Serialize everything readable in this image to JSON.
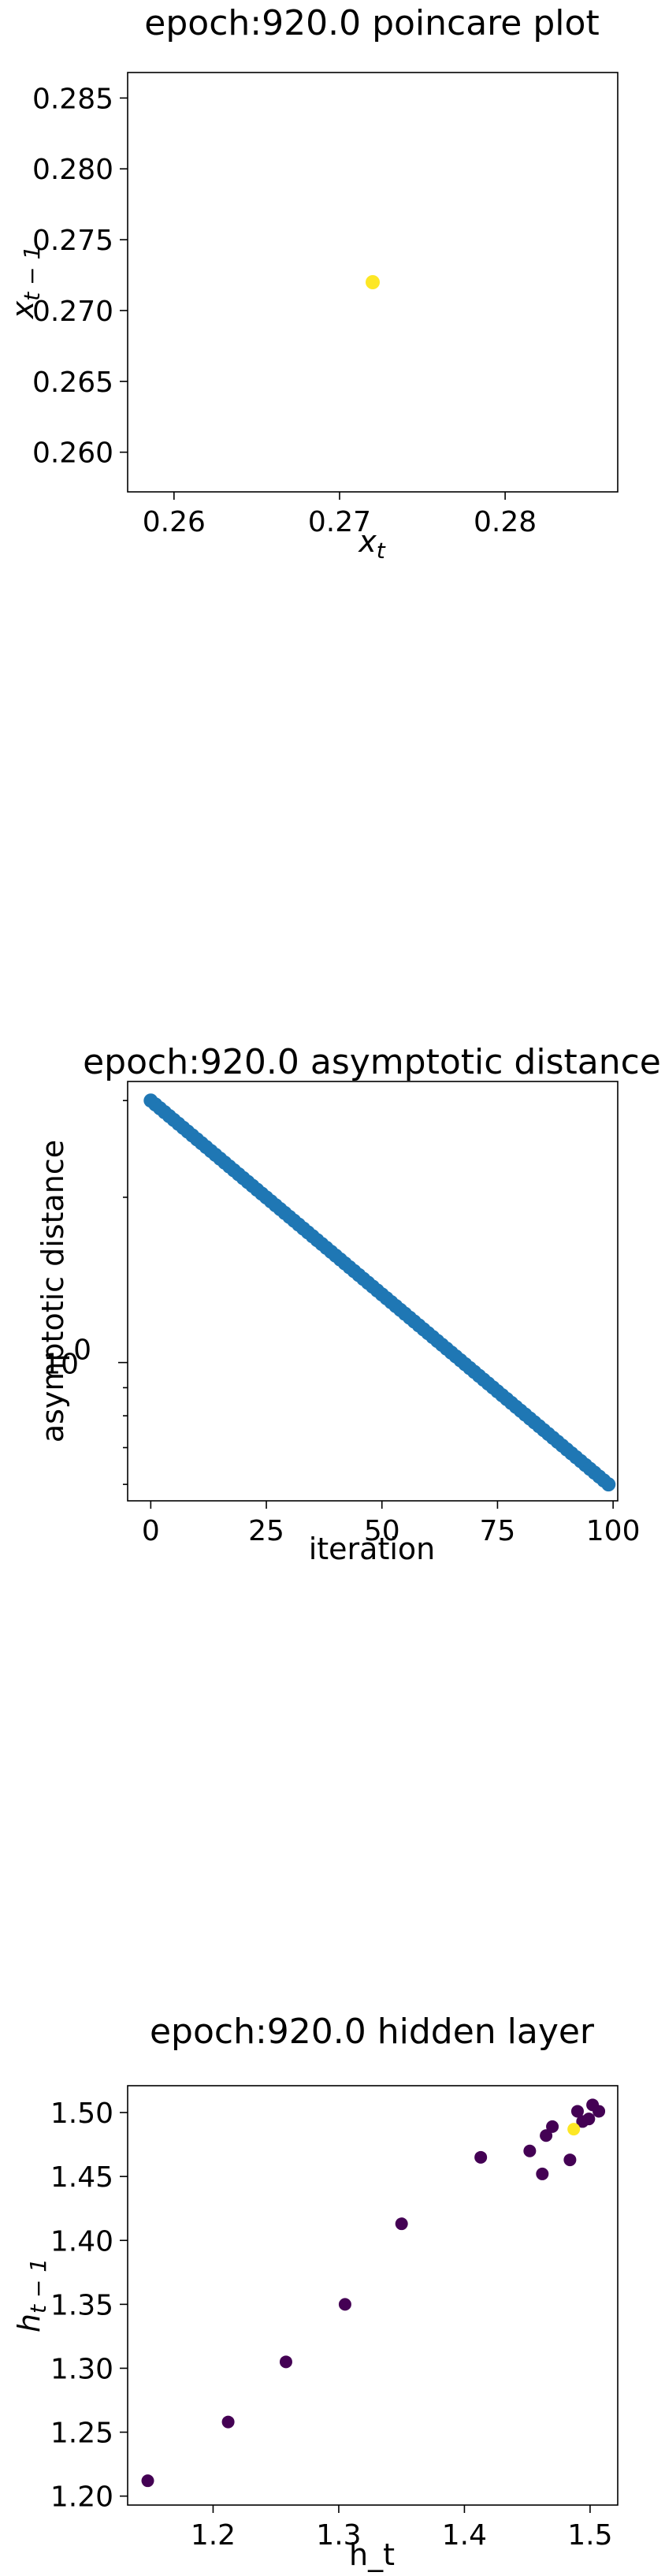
{
  "chart_data": [
    {
      "type": "scatter",
      "title": "epoch:920.0 poincare plot",
      "xlabel": "x",
      "xlabel_sub": "t",
      "ylabel": "x",
      "ylabel_sub": "t − 1",
      "xlim": [
        0.2572,
        0.2868
      ],
      "ylim": [
        0.2572,
        0.2868
      ],
      "xticks": [
        0.26,
        0.27,
        0.28
      ],
      "yticks": [
        0.26,
        0.265,
        0.27,
        0.275,
        0.28,
        0.285
      ],
      "xtick_labels": [
        "0.26",
        "0.27",
        "0.28"
      ],
      "ytick_labels": [
        "0.260",
        "0.265",
        "0.270",
        "0.275",
        "0.280",
        "0.285"
      ],
      "grid": false,
      "points": [
        {
          "x": 0.272,
          "y": 0.272,
          "color": "#fde725"
        }
      ]
    },
    {
      "type": "scatter",
      "title": "epoch:920.0 asymptotic distance",
      "xlabel": "iteration",
      "ylabel": "asymptotic distance",
      "yscale": "log",
      "xlim": [
        -5,
        101
      ],
      "ylim": [
        0.56,
        3.25
      ],
      "xticks": [
        0,
        25,
        50,
        75,
        100
      ],
      "xtick_labels": [
        "0",
        "25",
        "50",
        "75",
        "100"
      ],
      "ytick_major": [
        1
      ],
      "ytick_major_labels": [
        "10",
        "0"
      ],
      "ytick_minor": [
        0.6,
        0.7,
        0.8,
        0.9,
        2,
        3
      ],
      "grid": false,
      "color": "#1f77b4",
      "n_points": 100,
      "y_start": 3.0,
      "y_end": 0.6
    },
    {
      "type": "scatter",
      "title": "epoch:920.0 hidden layer",
      "xlabel": "h_t",
      "ylabel": "h",
      "ylabel_sub": "t − 1",
      "xlim": [
        1.132,
        1.522
      ],
      "ylim": [
        1.193,
        1.521
      ],
      "xticks": [
        1.2,
        1.3,
        1.4,
        1.5
      ],
      "yticks": [
        1.2,
        1.25,
        1.3,
        1.35,
        1.4,
        1.45,
        1.5
      ],
      "xtick_labels": [
        "1.2",
        "1.3",
        "1.4",
        "1.5"
      ],
      "ytick_labels": [
        "1.20",
        "1.25",
        "1.30",
        "1.35",
        "1.40",
        "1.45",
        "1.50"
      ],
      "grid": false,
      "points": [
        {
          "x": 1.148,
          "y": 1.212,
          "color": "#440154"
        },
        {
          "x": 1.212,
          "y": 1.258,
          "color": "#440154"
        },
        {
          "x": 1.258,
          "y": 1.305,
          "color": "#440154"
        },
        {
          "x": 1.305,
          "y": 1.35,
          "color": "#440154"
        },
        {
          "x": 1.35,
          "y": 1.413,
          "color": "#440154"
        },
        {
          "x": 1.413,
          "y": 1.465,
          "color": "#440154"
        },
        {
          "x": 1.452,
          "y": 1.47,
          "color": "#440154"
        },
        {
          "x": 1.462,
          "y": 1.452,
          "color": "#440154"
        },
        {
          "x": 1.465,
          "y": 1.482,
          "color": "#440154"
        },
        {
          "x": 1.47,
          "y": 1.489,
          "color": "#440154"
        },
        {
          "x": 1.484,
          "y": 1.463,
          "color": "#440154"
        },
        {
          "x": 1.49,
          "y": 1.501,
          "color": "#440154"
        },
        {
          "x": 1.494,
          "y": 1.493,
          "color": "#440154"
        },
        {
          "x": 1.499,
          "y": 1.495,
          "color": "#440154"
        },
        {
          "x": 1.502,
          "y": 1.506,
          "color": "#440154"
        },
        {
          "x": 1.507,
          "y": 1.501,
          "color": "#440154"
        },
        {
          "x": 1.487,
          "y": 1.487,
          "color": "#fde725"
        }
      ]
    }
  ]
}
